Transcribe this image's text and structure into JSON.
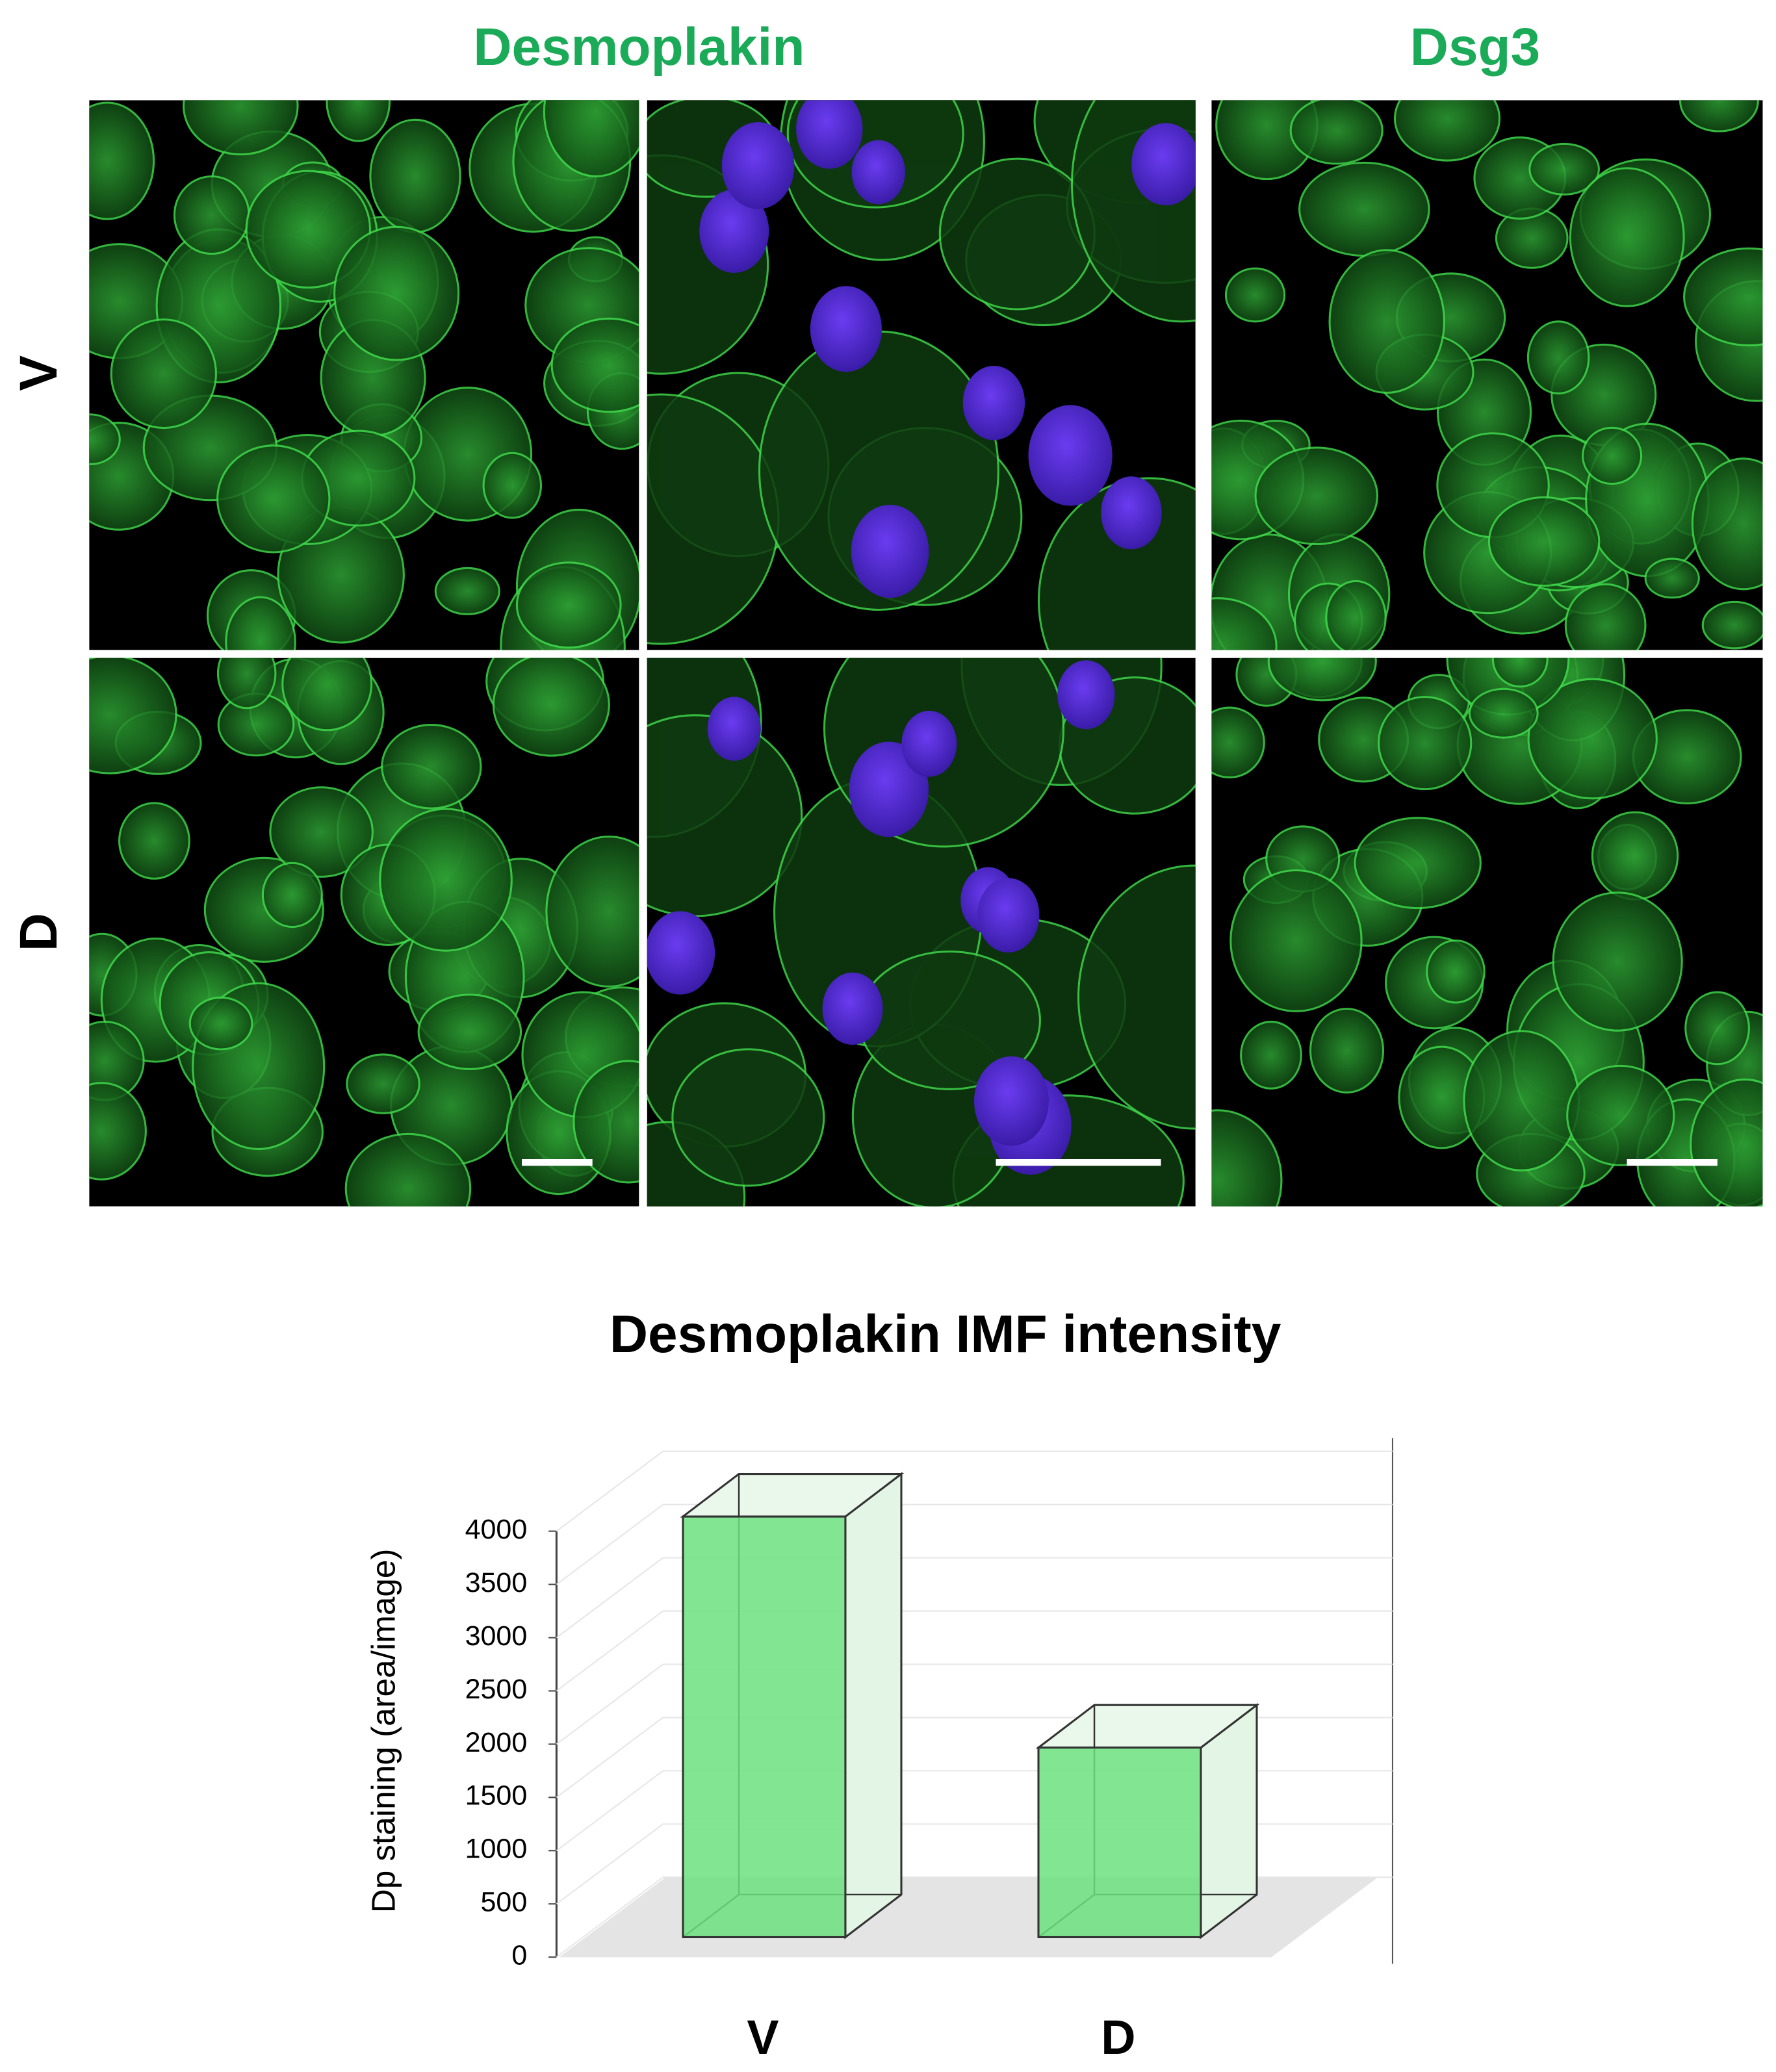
{
  "figure": {
    "column_headers": [
      "Desmoplakin",
      "Dsg3"
    ],
    "row_labels": [
      "V",
      "D"
    ]
  },
  "chart_data": {
    "type": "bar3d",
    "title": "Desmoplakin IMF intensity",
    "y_label": "Dp staining (area/image)",
    "categories": [
      "V",
      "D"
    ],
    "values": [
      3950,
      1780
    ],
    "color": "#6be07e",
    "ylim": [
      0,
      4000
    ],
    "yticks": [
      0,
      500,
      1000,
      1500,
      2000,
      2500,
      3000,
      3500,
      4000
    ],
    "grid": true
  }
}
